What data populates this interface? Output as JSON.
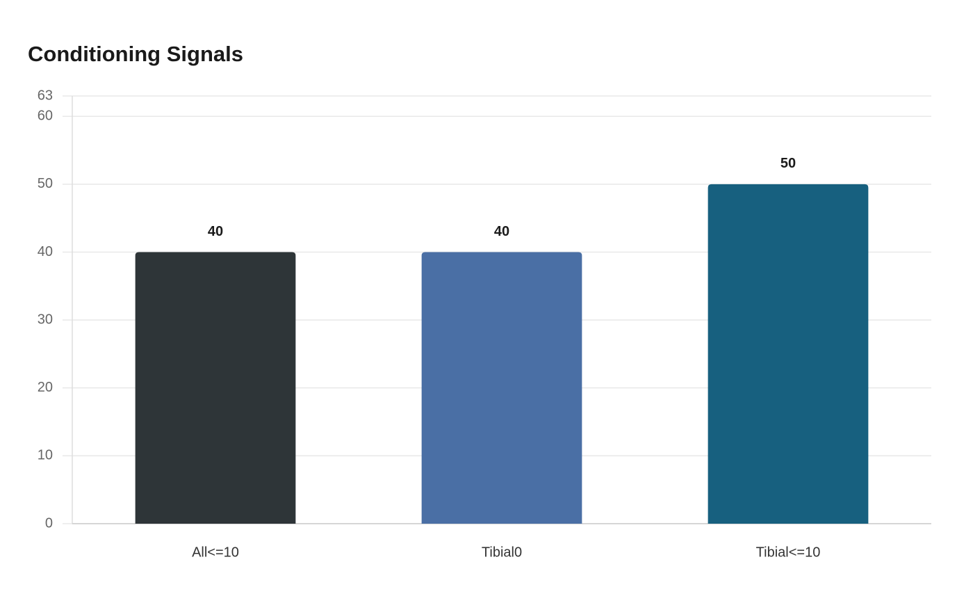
{
  "chart_data": {
    "type": "bar",
    "title": "Conditioning Signals",
    "categories": [
      "All<=10",
      "Tibial0",
      "Tibial<=10"
    ],
    "values": [
      40,
      40,
      50
    ],
    "colors": [
      "#2e3538",
      "#4a6fa5",
      "#17607f"
    ],
    "ylim": [
      0,
      63
    ],
    "yticks": [
      0,
      10,
      20,
      30,
      40,
      50,
      60,
      63
    ],
    "grid": true
  }
}
